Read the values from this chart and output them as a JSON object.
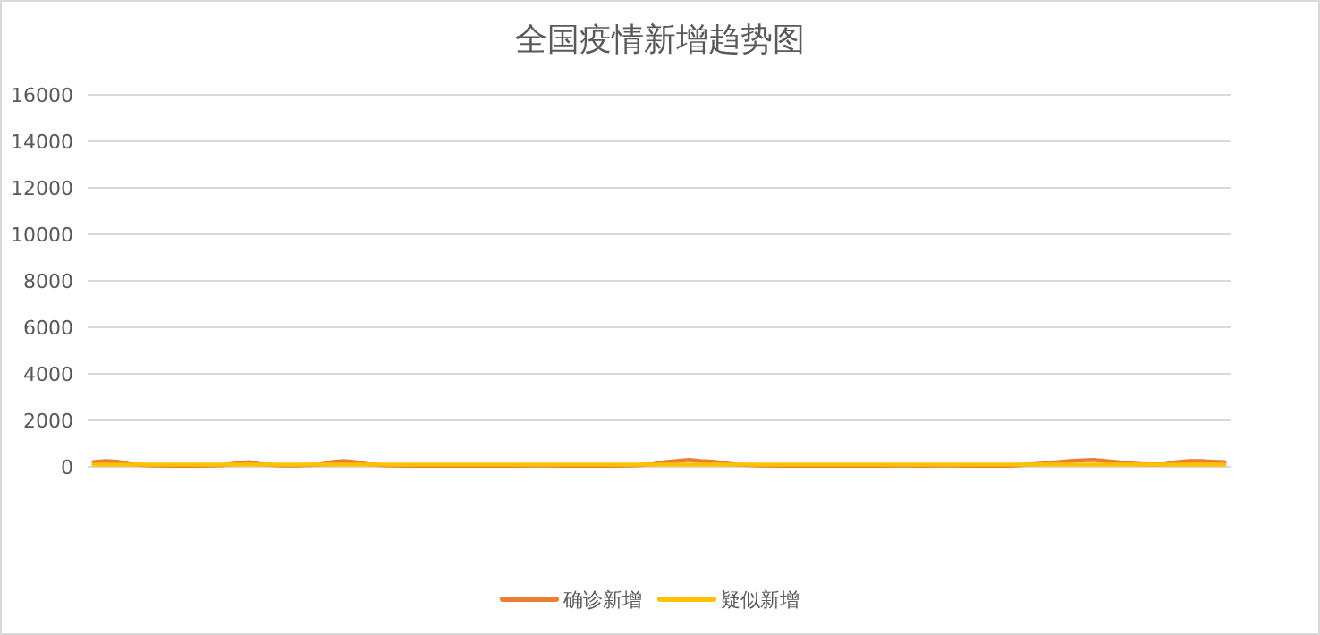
{
  "chart_data": {
    "type": "line",
    "title": "全国疫情新增趋势图",
    "categories": [
      null,
      null,
      null,
      null,
      null,
      null,
      null,
      null,
      null,
      null,
      null,
      null,
      null,
      null,
      null,
      null,
      null,
      null,
      null,
      null,
      null,
      null,
      null,
      null,
      null,
      null,
      null,
      null,
      null,
      null,
      null,
      null,
      null,
      null,
      null,
      null,
      null,
      null,
      null,
      null,
      null,
      null,
      null,
      null,
      null,
      null,
      null,
      null,
      null,
      null,
      null,
      null,
      null,
      null,
      null,
      null,
      null,
      null,
      null,
      null,
      null,
      null,
      null,
      null,
      null,
      null,
      null,
      null,
      null,
      null,
      null,
      null,
      null,
      null,
      null,
      null,
      null,
      null,
      null,
      null,
      null,
      null,
      null,
      null,
      null,
      null,
      null,
      null,
      null,
      null,
      null,
      null,
      null,
      null,
      null,
      null
    ],
    "series": [
      {
        "name": "确诊新增",
        "color": "#ed7d31",
        "values": [
          200,
          250,
          220,
          120,
          80,
          60,
          50,
          60,
          50,
          50,
          60,
          80,
          150,
          200,
          120,
          80,
          60,
          60,
          80,
          100,
          200,
          250,
          200,
          120,
          80,
          60,
          50,
          50,
          50,
          60,
          50,
          50,
          50,
          60,
          50,
          50,
          50,
          60,
          60,
          50,
          50,
          50,
          60,
          50,
          50,
          60,
          80,
          120,
          200,
          250,
          300,
          250,
          220,
          150,
          100,
          80,
          60,
          50,
          50,
          50,
          60,
          50,
          50,
          50,
          60,
          50,
          50,
          50,
          60,
          50,
          50,
          60,
          60,
          50,
          50,
          50,
          60,
          50,
          80,
          120,
          150,
          200,
          250,
          280,
          300,
          250,
          200,
          150,
          120,
          100,
          120,
          200,
          250,
          250,
          220,
          200
        ]
      },
      {
        "name": "疑似新增",
        "color": "#ffc000",
        "values": [
          100,
          100,
          100,
          100,
          100,
          100,
          100,
          100,
          100,
          100,
          100,
          100,
          100,
          100,
          100,
          100,
          100,
          100,
          100,
          100,
          100,
          100,
          100,
          100,
          100,
          100,
          100,
          100,
          100,
          100,
          100,
          100,
          100,
          100,
          100,
          100,
          100,
          100,
          100,
          100,
          100,
          100,
          100,
          100,
          100,
          100,
          100,
          100,
          100,
          100,
          100,
          100,
          100,
          100,
          100,
          100,
          100,
          100,
          100,
          100,
          100,
          100,
          100,
          100,
          100,
          100,
          100,
          100,
          100,
          100,
          100,
          100,
          100,
          100,
          100,
          100,
          100,
          100,
          100,
          100,
          100,
          100,
          100,
          100,
          100,
          100,
          100,
          100,
          100,
          100,
          100,
          100,
          100,
          100,
          100,
          100
        ]
      }
    ],
    "ylim": [
      0,
      16000
    ],
    "yticks": [
      0,
      2000,
      4000,
      6000,
      8000,
      10000,
      12000,
      14000,
      16000
    ],
    "grid": "y",
    "legend": "bottom",
    "marker": "none",
    "line_style": "solid"
  }
}
